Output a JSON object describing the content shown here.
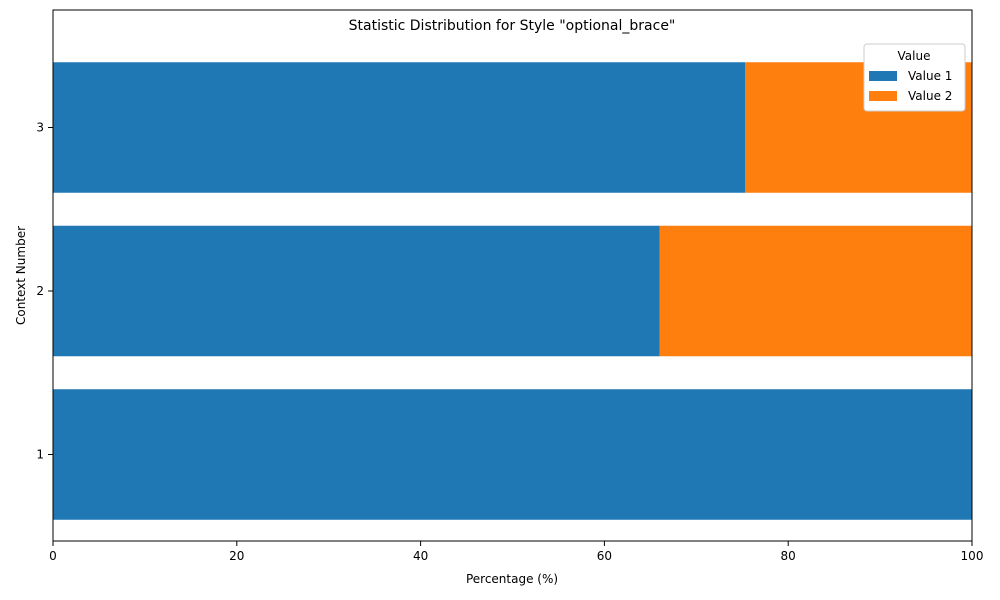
{
  "chart_data": {
    "type": "bar",
    "orientation": "horizontal",
    "stacked": true,
    "title": "Statistic Distribution for Style \"optional_brace\"",
    "xlabel": "Percentage (%)",
    "ylabel": "Context Number",
    "xlim": [
      0,
      100
    ],
    "xticks": [
      "0",
      "20",
      "40",
      "60",
      "80",
      "100"
    ],
    "categories": [
      "1",
      "2",
      "3"
    ],
    "series": [
      {
        "name": "Value 1",
        "color": "#1f77b4",
        "values": [
          100,
          66,
          75.3
        ]
      },
      {
        "name": "Value 2",
        "color": "#ff7f0e",
        "values": [
          0,
          34,
          24.7
        ]
      }
    ],
    "legend": {
      "title": "Value",
      "position": "top-right"
    },
    "grid": false
  }
}
